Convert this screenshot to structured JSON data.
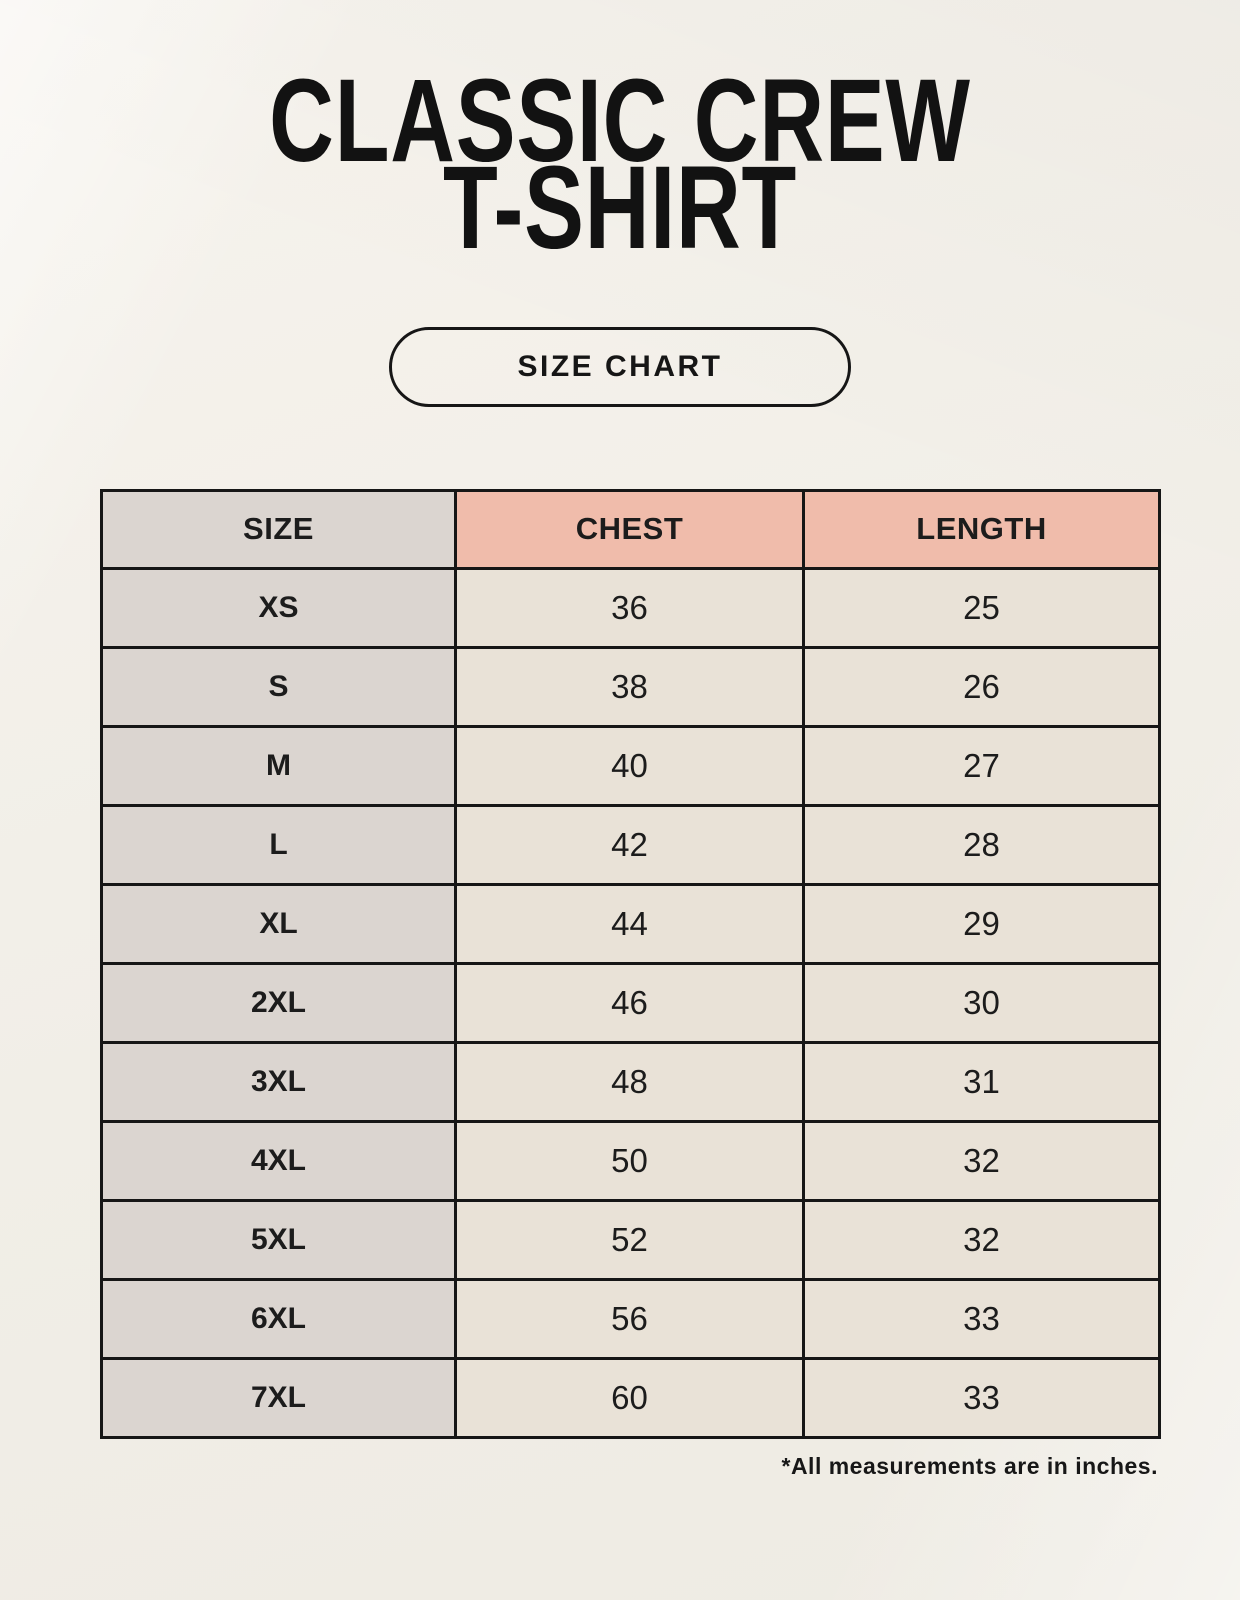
{
  "page": {
    "title_line1": "CLASSIC CREW",
    "title_line2": "T-SHIRT",
    "badge_label": "SIZE CHART",
    "footnote": "*All measurements are in inches."
  },
  "table": {
    "columns": [
      "SIZE",
      "CHEST",
      "LENGTH"
    ],
    "rows": [
      {
        "size": "XS",
        "chest": "36",
        "length": "25"
      },
      {
        "size": "S",
        "chest": "38",
        "length": "26"
      },
      {
        "size": "M",
        "chest": "40",
        "length": "27"
      },
      {
        "size": "L",
        "chest": "42",
        "length": "28"
      },
      {
        "size": "XL",
        "chest": "44",
        "length": "29"
      },
      {
        "size": "2XL",
        "chest": "46",
        "length": "30"
      },
      {
        "size": "3XL",
        "chest": "48",
        "length": "31"
      },
      {
        "size": "4XL",
        "chest": "50",
        "length": "32"
      },
      {
        "size": "5XL",
        "chest": "52",
        "length": "32"
      },
      {
        "size": "6XL",
        "chest": "56",
        "length": "33"
      },
      {
        "size": "7XL",
        "chest": "60",
        "length": "33"
      }
    ]
  },
  "colors": {
    "background": "#f2efe8",
    "header_accent": "#f0bcab",
    "size_column": "#dbd5d0",
    "cell": "#e9e2d7",
    "border": "#161616",
    "text": "#1c1c1c"
  }
}
